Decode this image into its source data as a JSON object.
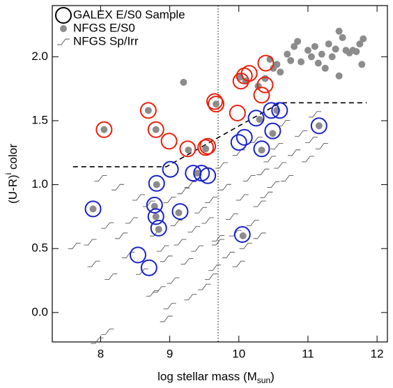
{
  "chart_data": {
    "type": "scatter",
    "xlabel": {
      "text": "log stellar mass (M",
      "sub": "sun",
      "end": ")"
    },
    "ylabel": {
      "text": "(U-R)",
      "sup": "i",
      "end": " color"
    },
    "xlim": [
      7.3,
      12.15
    ],
    "ylim": [
      -0.23,
      2.4
    ],
    "xticks": [
      8,
      9,
      10,
      11,
      12
    ],
    "yticks": [
      {
        "value": 0,
        "label": "0.0"
      },
      0.5,
      {
        "value": 1,
        "label": "1.0"
      },
      1.5,
      {
        "value": 2,
        "label": "2.0"
      }
    ],
    "legend": "upper left",
    "vline": 9.7,
    "dividing_line": {
      "x": [
        7.6,
        8.95,
        10.6,
        11.85
      ],
      "y": [
        1.14,
        1.14,
        1.64,
        1.64
      ]
    },
    "series": [
      {
        "name": "GALEX E/S0 Sample",
        "marker": "circle",
        "color": "#000000",
        "x": [
          8.05,
          8.69,
          8.8,
          8.99,
          9.26,
          9.52,
          9.55,
          9.65,
          9.67,
          9.98,
          10.03,
          10.08,
          10.15,
          10.33,
          10.38,
          10.39,
          7.89,
          8.81,
          9.01,
          8.78,
          8.8,
          8.84,
          9.15,
          8.54,
          8.7,
          9.34,
          9.46,
          9.55,
          10.0,
          10.08,
          10.33,
          10.25,
          10.49,
          10.47,
          10.59,
          11.16,
          10.05
        ],
        "values": [
          1.43,
          1.58,
          1.43,
          1.34,
          1.28,
          1.29,
          1.3,
          1.65,
          1.63,
          1.56,
          1.81,
          1.85,
          1.87,
          1.7,
          1.78,
          1.95,
          0.81,
          1.01,
          1.12,
          0.84,
          0.75,
          0.66,
          0.79,
          0.45,
          0.35,
          1.09,
          1.09,
          1.07,
          1.33,
          1.37,
          1.28,
          1.52,
          1.42,
          1.58,
          1.58,
          1.46,
          0.61
        ],
        "point_colors": [
          "#e8200c",
          "#e8200c",
          "#e8200c",
          "#e8200c",
          "#e8200c",
          "#e8200c",
          "#e8200c",
          "#e8200c",
          "#e8200c",
          "#e8200c",
          "#e8200c",
          "#e8200c",
          "#e8200c",
          "#e8200c",
          "#e8200c",
          "#e8200c",
          "#1a22c8",
          "#1a22c8",
          "#1a22c8",
          "#1a22c8",
          "#1a22c8",
          "#1a22c8",
          "#1a22c8",
          "#1a22c8",
          "#1a22c8",
          "#1a22c8",
          "#1a22c8",
          "#1a22c8",
          "#1a22c8",
          "#1a22c8",
          "#1a22c8",
          "#1a22c8",
          "#1a22c8",
          "#1a22c8",
          "#1a22c8",
          "#1a22c8",
          "#1a22c8"
        ]
      },
      {
        "name": "NFGS E/S0",
        "marker": "dot",
        "color": "#8c8c8c",
        "x": [
          8.05,
          8.69,
          8.8,
          9.27,
          9.52,
          9.67,
          7.89,
          8.81,
          8.78,
          8.8,
          8.84,
          9.13,
          9.4,
          10.3,
          10.33,
          10.49,
          10.55,
          11.16,
          10.06,
          9.2,
          10.02,
          10.1,
          10.28,
          10.45,
          10.55,
          10.6,
          10.7,
          10.75,
          10.8,
          10.85,
          10.9,
          11.0,
          11.05,
          11.1,
          11.15,
          11.2,
          11.25,
          11.3,
          11.35,
          11.4,
          11.45,
          11.5,
          11.55,
          11.6,
          11.65,
          11.7,
          11.75,
          11.78,
          11.8,
          10.5,
          10.38,
          11.45
        ],
        "values": [
          1.43,
          1.58,
          1.43,
          1.27,
          1.28,
          1.63,
          0.81,
          1.0,
          0.83,
          0.75,
          0.65,
          0.78,
          1.09,
          1.51,
          1.27,
          1.4,
          1.58,
          1.46,
          0.6,
          1.8,
          1.84,
          1.81,
          1.77,
          1.98,
          1.94,
          1.88,
          2.02,
          1.97,
          2.08,
          2.12,
          1.96,
          2.05,
          2.0,
          2.08,
          1.95,
          2.02,
          1.91,
          2.1,
          2.0,
          2.06,
          1.85,
          2.15,
          2.05,
          2.03,
          2.05,
          2.04,
          2.1,
          1.94,
          2.14,
          1.91,
          1.83,
          2.2
        ]
      },
      {
        "name": "NFGS Sp/Irr",
        "marker": "hook",
        "color": "#555555",
        "x": [
          7.62,
          7.85,
          7.9,
          8.0,
          8.1,
          8.15,
          8.25,
          8.3,
          8.4,
          8.45,
          8.55,
          8.6,
          8.7,
          8.75,
          8.8,
          8.85,
          8.9,
          8.95,
          9.0,
          9.05,
          9.1,
          9.15,
          9.2,
          9.25,
          9.3,
          9.35,
          9.4,
          9.45,
          9.5,
          9.55,
          9.6,
          9.65,
          9.7,
          9.75,
          9.8,
          9.85,
          9.9,
          9.95,
          10.0,
          10.05,
          10.1,
          10.15,
          10.2,
          10.25,
          10.3,
          10.35,
          10.4,
          10.45,
          10.5,
          10.55,
          10.6,
          10.65,
          10.7,
          10.8,
          10.9,
          11.0,
          11.05,
          11.1,
          11.2,
          9.0,
          9.3,
          9.6,
          10.0,
          10.3,
          8.1,
          7.95,
          8.95,
          9.7
        ],
        "values": [
          0.52,
          0.55,
          0.38,
          1.05,
          0.68,
          0.28,
          0.98,
          0.6,
          0.45,
          0.72,
          0.9,
          0.32,
          0.85,
          0.15,
          0.62,
          0.18,
          0.5,
          0.42,
          0.88,
          0.25,
          0.7,
          0.55,
          0.95,
          0.4,
          1.0,
          0.65,
          0.5,
          0.8,
          0.2,
          0.72,
          0.88,
          0.35,
          0.55,
          1.15,
          0.98,
          0.45,
          0.75,
          0.62,
          1.25,
          0.9,
          0.52,
          1.05,
          0.7,
          1.35,
          0.85,
          1.1,
          0.92,
          1.2,
          1.0,
          1.3,
          1.15,
          1.48,
          1.05,
          1.25,
          1.4,
          1.2,
          1.35,
          1.55,
          1.3,
          0.05,
          0.12,
          0.28,
          0.38,
          0.6,
          -0.15,
          -0.22,
          -0.05,
          0.58
        ]
      }
    ]
  }
}
